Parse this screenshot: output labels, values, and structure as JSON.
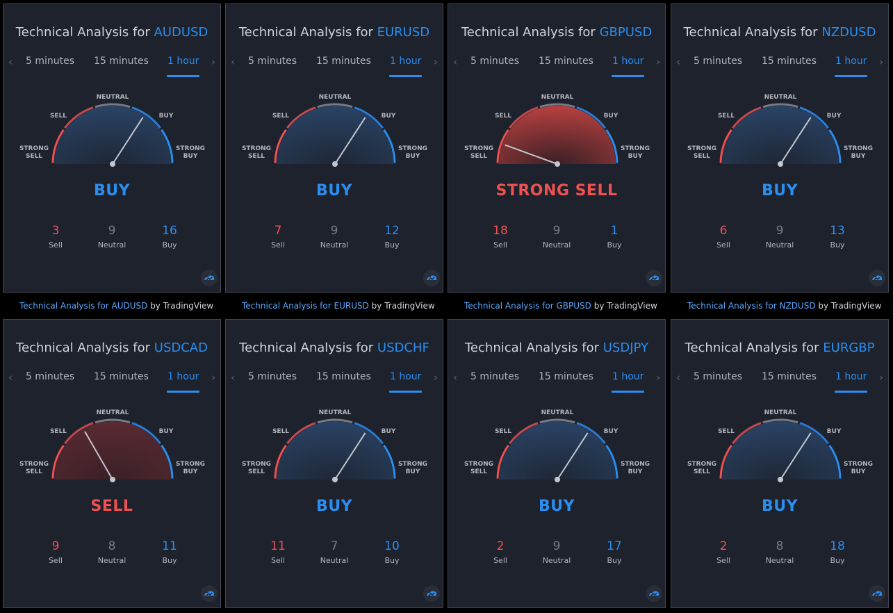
{
  "tabs": {
    "t1": "5 minutes",
    "t2": "15 minutes",
    "t3": "1 hour"
  },
  "gauge_labels": {
    "neutral": "NEUTRAL",
    "sell": "SELL",
    "buy": "BUY",
    "strong_sell_1": "STRONG",
    "strong_sell_2": "SELL",
    "strong_buy_1": "STRONG",
    "strong_buy_2": "BUY"
  },
  "count_labels": {
    "sell": "Sell",
    "neutral": "Neutral",
    "buy": "Buy"
  },
  "title_prefix": "Technical Analysis for",
  "caption_by": "by TradingView",
  "colors": {
    "sell": "#f0504f",
    "buy": "#2a8ef0",
    "neutral": "#787b86",
    "card_bg": "#1e222d"
  },
  "widgets": [
    {
      "symbol": "AUDUSD",
      "verdict": "BUY",
      "sell": "3",
      "neutral": "9",
      "buy": "16",
      "caption_link": "Technical Analysis for AUDUSD"
    },
    {
      "symbol": "EURUSD",
      "verdict": "BUY",
      "sell": "7",
      "neutral": "9",
      "buy": "12",
      "caption_link": "Technical Analysis for EURUSD"
    },
    {
      "symbol": "GBPUSD",
      "verdict": "STRONG SELL",
      "sell": "18",
      "neutral": "9",
      "buy": "1",
      "caption_link": "Technical Analysis for GBPUSD"
    },
    {
      "symbol": "NZDUSD",
      "verdict": "BUY",
      "sell": "6",
      "neutral": "9",
      "buy": "13",
      "caption_link": "Technical Analysis for NZDUSD"
    },
    {
      "symbol": "USDCAD",
      "verdict": "SELL",
      "sell": "9",
      "neutral": "8",
      "buy": "11"
    },
    {
      "symbol": "USDCHF",
      "verdict": "BUY",
      "sell": "11",
      "neutral": "7",
      "buy": "10"
    },
    {
      "symbol": "USDJPY",
      "verdict": "BUY",
      "sell": "2",
      "neutral": "9",
      "buy": "17"
    },
    {
      "symbol": "EURGBP",
      "verdict": "BUY",
      "sell": "2",
      "neutral": "8",
      "buy": "18"
    }
  ]
}
